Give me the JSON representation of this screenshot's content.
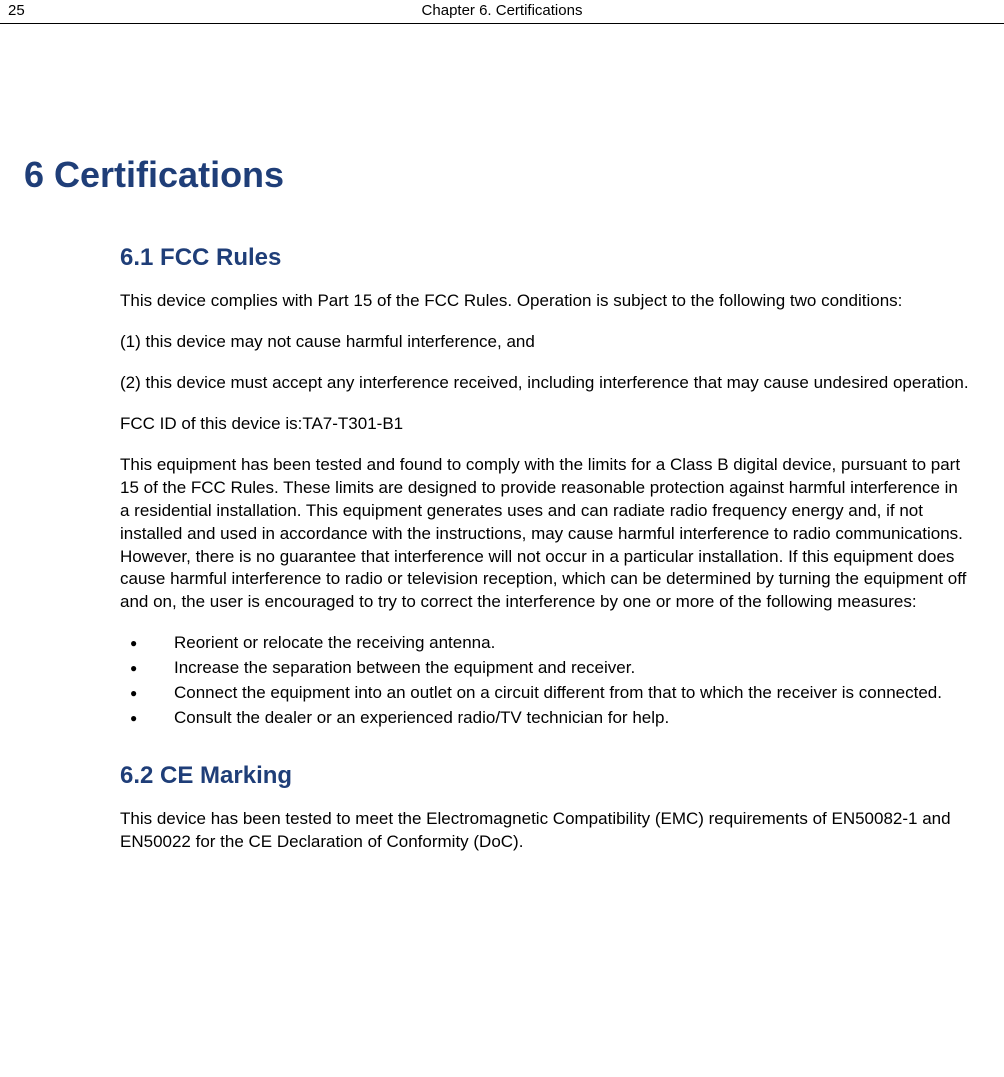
{
  "header": {
    "page_number": "25",
    "chapter_label": "Chapter 6. Certifications"
  },
  "colors": {
    "heading": "#1f3e78",
    "text": "#000000",
    "background": "#ffffff",
    "rule": "#000000"
  },
  "typography": {
    "body_font": "Arial",
    "h1_size_pt": 27,
    "h2_size_pt": 18,
    "body_size_pt": 13
  },
  "h1": "6  Certifications",
  "sections": [
    {
      "heading": "6.1  FCC Rules",
      "paragraphs": [
        "This device complies with Part 15 of the FCC Rules. Operation is subject to the following two conditions:",
        "(1) this device may not cause harmful interference, and",
        "(2) this device must accept any interference received, including interference that may cause undesired operation.",
        "FCC ID of this device is:TA7-T301-B1",
        "This equipment has been tested and found to comply with the limits for a Class B digital device, pursuant to part 15 of the FCC Rules. These limits are designed to provide reasonable protection against harmful interference in a residential installation. This equipment generates uses and can radiate radio frequency energy and, if not installed and used in accordance with the instructions, may cause harmful interference to radio communications. However, there is no guarantee that interference will not occur in a particular installation. If this equipment does cause harmful interference to radio or television reception, which can be determined by turning the equipment off and on, the user is encouraged to try to correct the interference by one or more of the following measures:"
      ],
      "bullets": [
        "Reorient or relocate the receiving antenna.",
        "Increase the separation between the equipment and receiver.",
        "Connect the equipment into an outlet on a circuit different from that to which the receiver is connected.",
        "Consult the dealer or an experienced radio/TV technician for help."
      ]
    },
    {
      "heading": "6.2  CE Marking",
      "paragraphs": [
        "This device has been tested to meet the Electromagnetic Compatibility (EMC) requirements of EN50082-1 and EN50022 for the CE Declaration of Conformity (DoC)."
      ],
      "bullets": []
    }
  ]
}
